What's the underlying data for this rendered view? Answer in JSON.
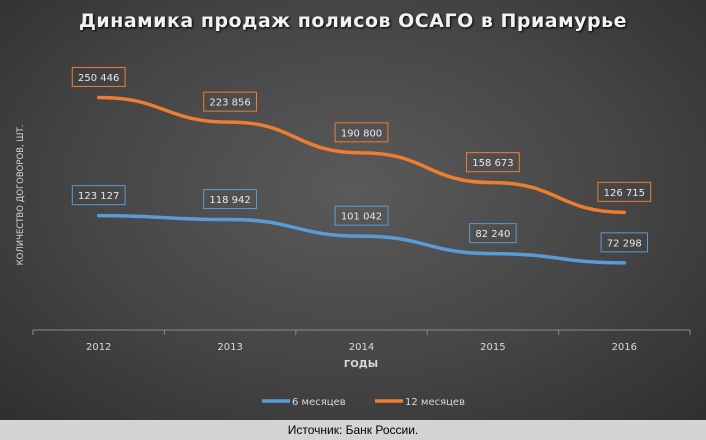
{
  "chart_data": {
    "type": "line",
    "title": "Динамика продаж полисов ОСАГО в Приамурье",
    "xlabel": "ГОДЫ",
    "ylabel": "КОЛИЧЕСТВО ДОГОВОРОВ, ШТ.",
    "x": [
      "2012",
      "2013",
      "2014",
      "2015",
      "2016"
    ],
    "ylim": [
      0,
      280000
    ],
    "grid": false,
    "legend": "bottom",
    "series": [
      {
        "name": "6 месяцев",
        "color": "#5b9bd5",
        "values": [
          123127,
          118942,
          101042,
          82240,
          72298
        ],
        "labels": [
          "123 127",
          "118 942",
          "101 042",
          "82 240",
          "72 298"
        ]
      },
      {
        "name": "12 месяцев",
        "color": "#ed7d31",
        "values": [
          250446,
          223856,
          190800,
          158673,
          126715
        ],
        "labels": [
          "250 446",
          "223 856",
          "190 800",
          "158 673",
          "126 715"
        ]
      }
    ]
  },
  "source_note": "Источник: Банк России."
}
